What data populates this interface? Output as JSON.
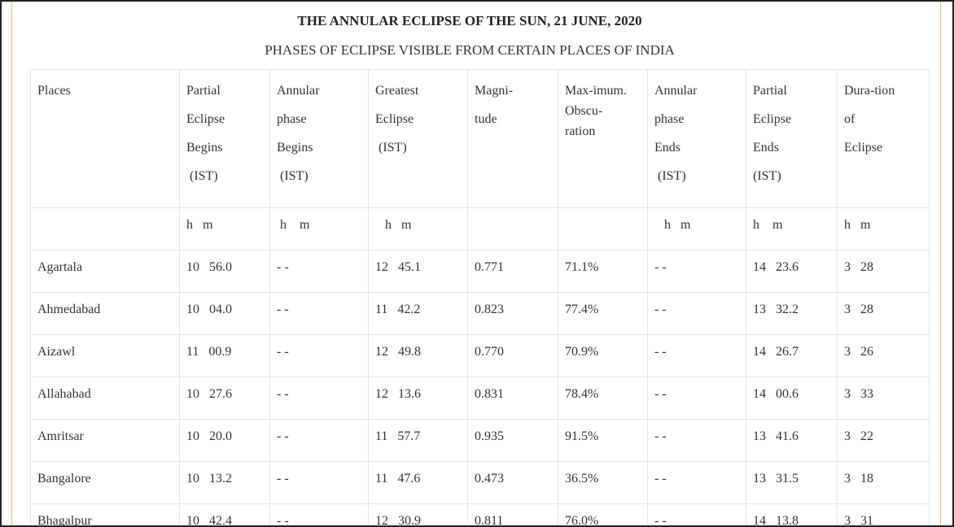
{
  "title": "THE ANNULAR ECLIPSE OF THE SUN, 21 JUNE, 2020",
  "subtitle": "PHASES OF ECLIPSE VISIBLE FROM CERTAIN PLACES OF INDIA",
  "headers": {
    "places": [
      "Places"
    ],
    "partial_begins": [
      "Partial",
      "Eclipse",
      "Begins",
      " (IST)"
    ],
    "annular_begins": [
      "Annular",
      "phase",
      "Begins",
      " (IST)"
    ],
    "greatest": [
      "Greatest",
      "Eclipse",
      " (IST)"
    ],
    "magnitude": [
      "Magni-",
      "tude"
    ],
    "obscuration": [
      "Max-imum.",
      "Obscu-",
      "ration"
    ],
    "annular_ends": [
      "Annular",
      "phase",
      "Ends",
      " (IST)"
    ],
    "partial_ends": [
      "Partial",
      "Eclipse",
      "Ends",
      "(IST)"
    ],
    "duration": [
      "Dura-tion",
      "of",
      "Eclipse"
    ]
  },
  "units": {
    "places": "",
    "partial_begins": "h   m",
    "annular_begins": " h    m",
    "greatest": "   h   m",
    "magnitude": "",
    "obscuration": "",
    "annular_ends": "   h   m",
    "partial_ends": "h    m",
    "duration": "h   m"
  },
  "rows": [
    {
      "place": "Agartala",
      "partial_begins": "10   56.0",
      "annular_begins": "- -",
      "greatest": "12   45.1",
      "magnitude": "0.771",
      "obscuration": "71.1%",
      "annular_ends": "- -",
      "partial_ends": "14   23.6",
      "duration": "3   28"
    },
    {
      "place": "Ahmedabad",
      "partial_begins": "10   04.0",
      "annular_begins": "- -",
      "greatest": "11   42.2",
      "magnitude": "0.823",
      "obscuration": "77.4%",
      "annular_ends": "- -",
      "partial_ends": "13   32.2",
      "duration": "3   28"
    },
    {
      "place": "Aizawl",
      "partial_begins": "11   00.9",
      "annular_begins": "- -",
      "greatest": "12   49.8",
      "magnitude": "0.770",
      "obscuration": "70.9%",
      "annular_ends": "- -",
      "partial_ends": "14   26.7",
      "duration": "3   26"
    },
    {
      "place": "Allahabad",
      "partial_begins": "10   27.6",
      "annular_begins": "- -",
      "greatest": "12   13.6",
      "magnitude": "0.831",
      "obscuration": "78.4%",
      "annular_ends": "- -",
      "partial_ends": "14   00.6",
      "duration": "3   33"
    },
    {
      "place": "Amritsar",
      "partial_begins": "10   20.0",
      "annular_begins": "- -",
      "greatest": "11   57.7",
      "magnitude": "0.935",
      "obscuration": "91.5%",
      "annular_ends": "- -",
      "partial_ends": "13   41.6",
      "duration": "3   22"
    },
    {
      "place": "Bangalore",
      "partial_begins": "10   13.2",
      "annular_begins": "- -",
      "greatest": "11   47.6",
      "magnitude": "0.473",
      "obscuration": "36.5%",
      "annular_ends": "- -",
      "partial_ends": "13   31.5",
      "duration": "3   18"
    },
    {
      "place": "Bhagalpur",
      "partial_begins": "10   42.4",
      "annular_begins": "- -",
      "greatest": "12   30.9",
      "magnitude": "0.811",
      "obscuration": "76.0%",
      "annular_ends": "- -",
      "partial_ends": "14   13.8",
      "duration": "3   31"
    }
  ]
}
